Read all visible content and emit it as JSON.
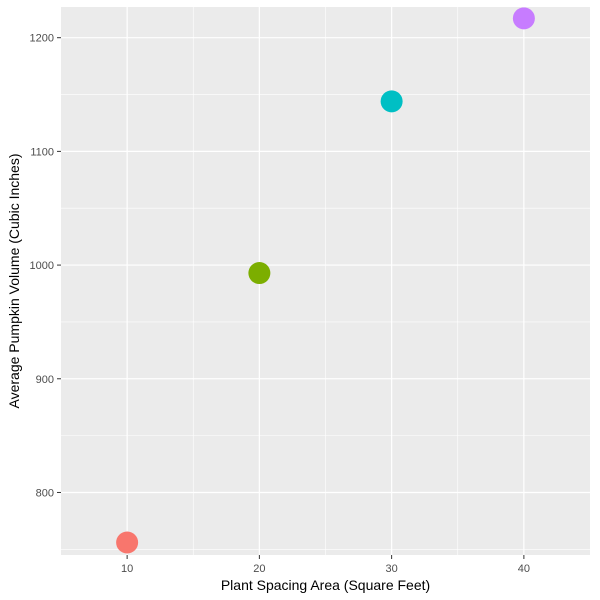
{
  "chart_data": {
    "type": "scatter",
    "title": "",
    "xlabel": "Plant Spacing Area (Square Feet)",
    "ylabel": "Average Pumpkin Volume (Cubic Inches)",
    "xlim": [
      5,
      45
    ],
    "ylim": [
      745,
      1227
    ],
    "x_ticks": [
      10,
      20,
      30,
      40
    ],
    "y_ticks": [
      800,
      900,
      1000,
      1100,
      1200
    ],
    "grid": true,
    "legend": "none",
    "panel_background": "#ebebeb",
    "points": [
      {
        "x": 10,
        "y": 756,
        "color": "#f8766d"
      },
      {
        "x": 20,
        "y": 993,
        "color": "#7cae00"
      },
      {
        "x": 30,
        "y": 1144,
        "color": "#00bfc4"
      },
      {
        "x": 40,
        "y": 1217,
        "color": "#c77cff"
      }
    ]
  }
}
